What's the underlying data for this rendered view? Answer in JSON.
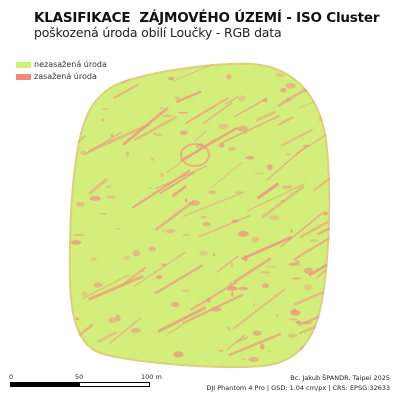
{
  "title": "KLASIFIKACE  ZÁJMOVÉHO ÚZEMÍ - ISO Cluster",
  "subtitle": "poškozená úroda obilí Loučky - RGB data",
  "legend": {
    "items": [
      {
        "label": "nezasažená úroda",
        "color": "#ccf279"
      },
      {
        "label": "zasažená úroda",
        "color": "#f08a7c"
      }
    ]
  },
  "map": {
    "field_color": "#d3ee7a",
    "damage_color": "#ec9a7f"
  },
  "scalebar": {
    "labels": [
      "0",
      "50",
      "100 m"
    ],
    "segment_colors": [
      "#000000",
      "#ffffff"
    ]
  },
  "credits": {
    "author": "Bc. Jakub ŠPANDR, Taipei 2025",
    "metadata": "DJI Phantom 4 Pro | GSD: 1.04 cm/px | CRS: EPSG:32633"
  }
}
